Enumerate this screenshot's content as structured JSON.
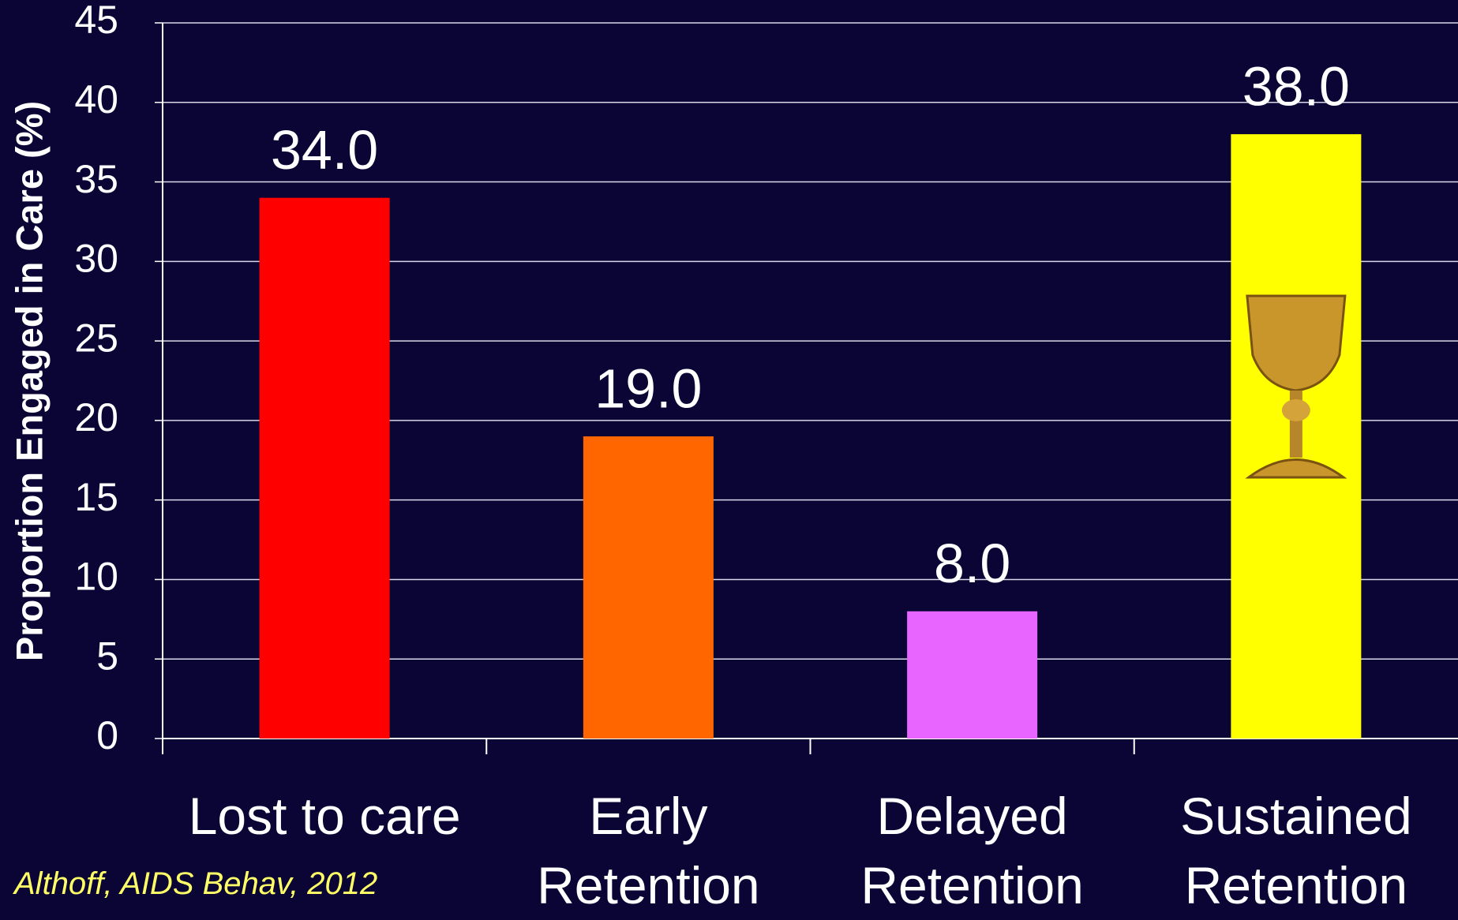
{
  "chart_data": {
    "type": "bar",
    "y_label": "Proportion Engaged in Care (%)",
    "categories": [
      "Lost to care",
      "Early Retention",
      "Delayed Retention",
      "Sustained Retention"
    ],
    "values": [
      34,
      19,
      8,
      38
    ],
    "value_labels": [
      "34.0",
      "19.0",
      "8.0",
      "38.0"
    ],
    "colors": [
      "#ff0000",
      "#ff6600",
      "#e866ff",
      "#ffff00"
    ],
    "ylim": [
      0,
      45
    ],
    "yticks": [
      0,
      5,
      10,
      15,
      20,
      25,
      30,
      35,
      40,
      45
    ],
    "grid": true,
    "source": "Althoff, AIDS Behav, 2012"
  }
}
